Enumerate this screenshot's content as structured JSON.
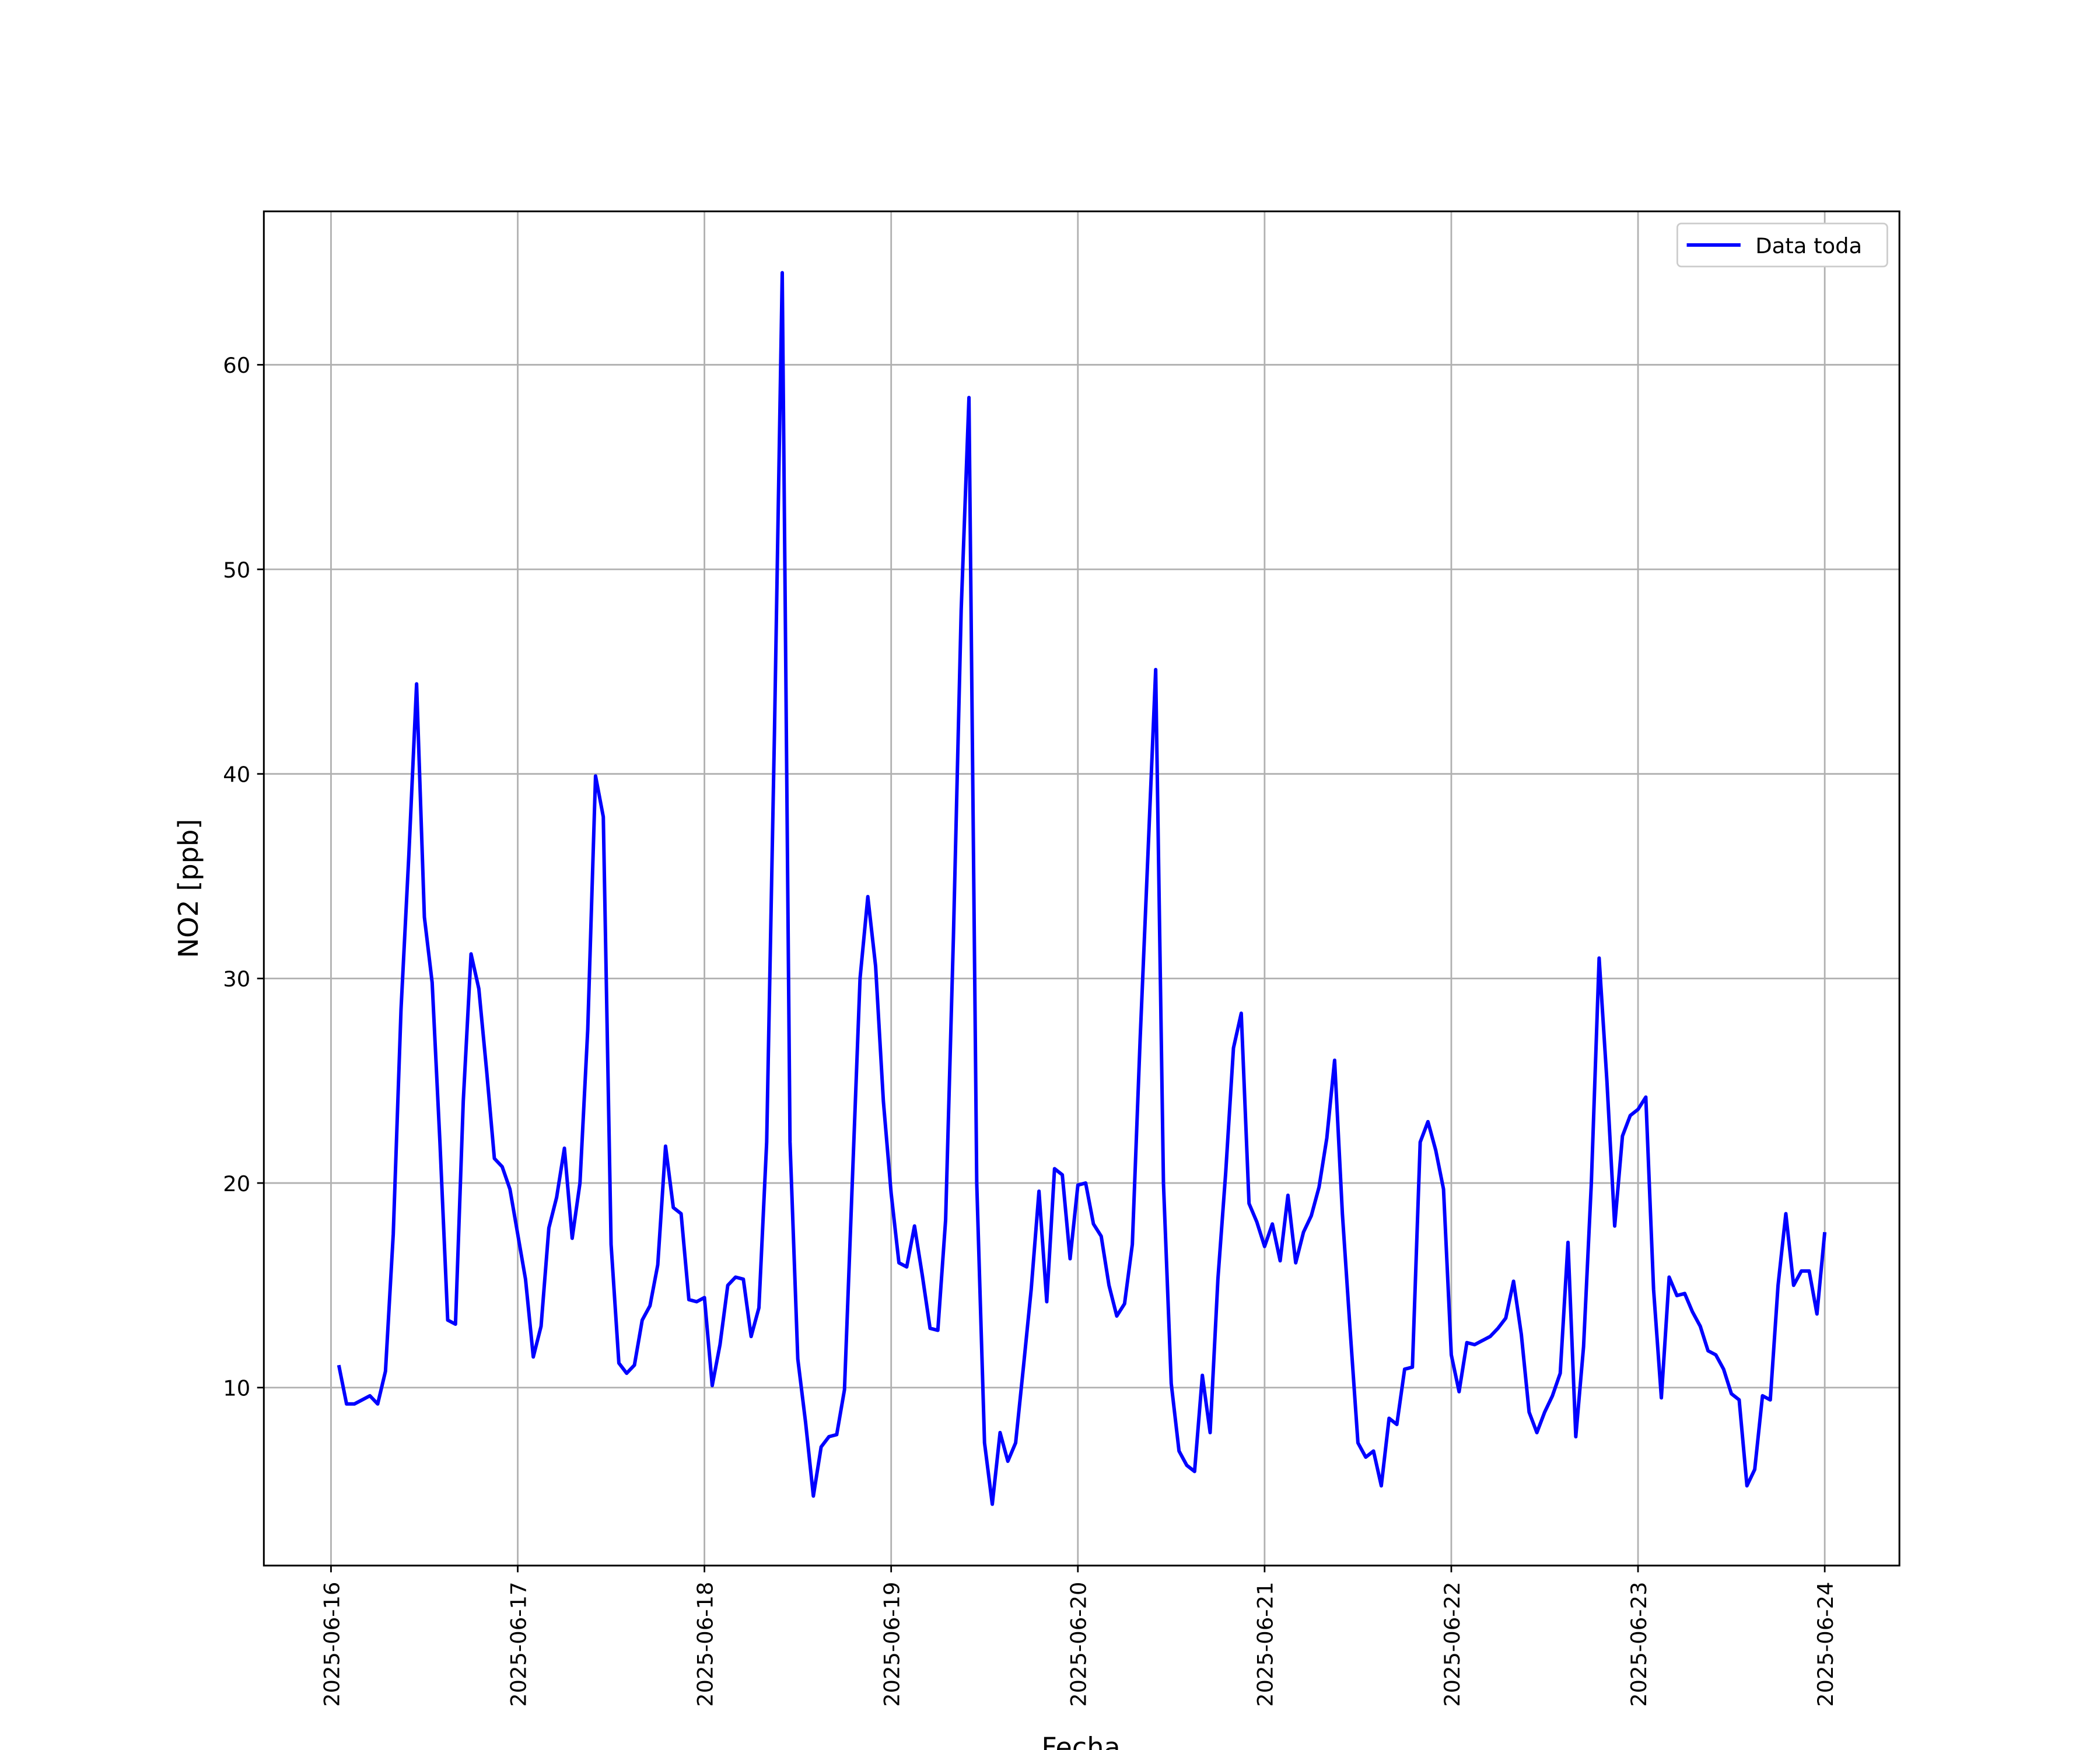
{
  "chart_data": {
    "type": "line",
    "xlabel": "Fecha",
    "ylabel": "NO2 [ppb]",
    "xlim": [
      "2025-06-15T15:22",
      "2025-06-24T09:36"
    ],
    "xticks": [
      "2025-06-16",
      "2025-06-17",
      "2025-06-18",
      "2025-06-19",
      "2025-06-20",
      "2025-06-21",
      "2025-06-22",
      "2025-06-23",
      "2025-06-24"
    ],
    "ylim": [
      1.3,
      67.5
    ],
    "yticks": [
      10,
      20,
      30,
      40,
      50,
      60
    ],
    "grid": true,
    "legend": "upper right",
    "x": [
      "2025-06-16T01:00",
      "2025-06-16T02:00",
      "2025-06-16T03:00",
      "2025-06-16T04:00",
      "2025-06-16T05:00",
      "2025-06-16T06:00",
      "2025-06-16T07:00",
      "2025-06-16T08:00",
      "2025-06-16T09:00",
      "2025-06-16T10:00",
      "2025-06-16T11:00",
      "2025-06-16T12:00",
      "2025-06-16T13:00",
      "2025-06-16T14:00",
      "2025-06-16T15:00",
      "2025-06-16T16:00",
      "2025-06-16T17:00",
      "2025-06-16T18:00",
      "2025-06-16T19:00",
      "2025-06-16T20:00",
      "2025-06-16T21:00",
      "2025-06-16T22:00",
      "2025-06-16T23:00",
      "2025-06-17T00:00",
      "2025-06-17T01:00",
      "2025-06-17T02:00",
      "2025-06-17T03:00",
      "2025-06-17T04:00",
      "2025-06-17T05:00",
      "2025-06-17T06:00",
      "2025-06-17T07:00",
      "2025-06-17T08:00",
      "2025-06-17T09:00",
      "2025-06-17T10:00",
      "2025-06-17T11:00",
      "2025-06-17T12:00",
      "2025-06-17T13:00",
      "2025-06-17T14:00",
      "2025-06-17T15:00",
      "2025-06-17T16:00",
      "2025-06-17T17:00",
      "2025-06-17T18:00",
      "2025-06-17T19:00",
      "2025-06-17T20:00",
      "2025-06-17T21:00",
      "2025-06-17T22:00",
      "2025-06-17T23:00",
      "2025-06-18T00:00",
      "2025-06-18T01:00",
      "2025-06-18T02:00",
      "2025-06-18T03:00",
      "2025-06-18T04:00",
      "2025-06-18T05:00",
      "2025-06-18T06:00",
      "2025-06-18T07:00",
      "2025-06-18T08:00",
      "2025-06-18T09:00",
      "2025-06-18T10:00",
      "2025-06-18T11:00",
      "2025-06-18T12:00",
      "2025-06-18T13:00",
      "2025-06-18T14:00",
      "2025-06-18T15:00",
      "2025-06-18T16:00",
      "2025-06-18T17:00",
      "2025-06-18T18:00",
      "2025-06-18T19:00",
      "2025-06-18T20:00",
      "2025-06-18T21:00",
      "2025-06-18T22:00",
      "2025-06-18T23:00",
      "2025-06-19T00:00",
      "2025-06-19T01:00",
      "2025-06-19T02:00",
      "2025-06-19T03:00",
      "2025-06-19T04:00",
      "2025-06-19T05:00",
      "2025-06-19T06:00",
      "2025-06-19T07:00",
      "2025-06-19T08:00",
      "2025-06-19T09:00",
      "2025-06-19T10:00",
      "2025-06-19T11:00",
      "2025-06-19T12:00",
      "2025-06-19T13:00",
      "2025-06-19T14:00",
      "2025-06-19T15:00",
      "2025-06-19T16:00",
      "2025-06-19T17:00",
      "2025-06-19T18:00",
      "2025-06-19T19:00",
      "2025-06-19T20:00",
      "2025-06-19T21:00",
      "2025-06-19T22:00",
      "2025-06-19T23:00",
      "2025-06-20T00:00",
      "2025-06-20T01:00",
      "2025-06-20T02:00",
      "2025-06-20T03:00",
      "2025-06-20T04:00",
      "2025-06-20T05:00",
      "2025-06-20T06:00",
      "2025-06-20T07:00",
      "2025-06-20T08:00",
      "2025-06-20T09:00",
      "2025-06-20T10:00",
      "2025-06-20T11:00",
      "2025-06-20T12:00",
      "2025-06-20T13:00",
      "2025-06-20T14:00",
      "2025-06-20T15:00",
      "2025-06-20T16:00",
      "2025-06-20T17:00",
      "2025-06-20T18:00",
      "2025-06-20T19:00",
      "2025-06-20T20:00",
      "2025-06-20T21:00",
      "2025-06-20T22:00",
      "2025-06-20T23:00",
      "2025-06-21T00:00",
      "2025-06-21T01:00",
      "2025-06-21T02:00",
      "2025-06-21T03:00",
      "2025-06-21T04:00",
      "2025-06-21T05:00",
      "2025-06-21T06:00",
      "2025-06-21T07:00",
      "2025-06-21T08:00",
      "2025-06-21T09:00",
      "2025-06-21T10:00",
      "2025-06-21T11:00",
      "2025-06-21T12:00",
      "2025-06-21T13:00",
      "2025-06-21T14:00",
      "2025-06-21T15:00",
      "2025-06-21T16:00",
      "2025-06-21T17:00",
      "2025-06-21T18:00",
      "2025-06-21T19:00",
      "2025-06-21T20:00",
      "2025-06-21T21:00",
      "2025-06-21T22:00",
      "2025-06-21T23:00",
      "2025-06-22T00:00",
      "2025-06-22T01:00",
      "2025-06-22T02:00",
      "2025-06-22T03:00",
      "2025-06-22T04:00",
      "2025-06-22T05:00",
      "2025-06-22T06:00",
      "2025-06-22T07:00",
      "2025-06-22T08:00",
      "2025-06-22T09:00",
      "2025-06-22T10:00",
      "2025-06-22T11:00",
      "2025-06-22T12:00",
      "2025-06-22T13:00",
      "2025-06-22T14:00",
      "2025-06-22T15:00",
      "2025-06-22T16:00",
      "2025-06-22T17:00",
      "2025-06-22T18:00",
      "2025-06-22T19:00",
      "2025-06-22T20:00",
      "2025-06-22T21:00",
      "2025-06-22T22:00",
      "2025-06-22T23:00",
      "2025-06-23T00:00",
      "2025-06-23T01:00",
      "2025-06-23T02:00",
      "2025-06-23T03:00",
      "2025-06-23T04:00",
      "2025-06-23T05:00",
      "2025-06-23T06:00",
      "2025-06-23T07:00",
      "2025-06-23T08:00",
      "2025-06-23T09:00",
      "2025-06-23T10:00",
      "2025-06-23T11:00",
      "2025-06-23T12:00",
      "2025-06-23T13:00",
      "2025-06-23T14:00",
      "2025-06-23T15:00",
      "2025-06-23T16:00",
      "2025-06-23T17:00",
      "2025-06-23T18:00",
      "2025-06-23T19:00",
      "2025-06-23T20:00",
      "2025-06-23T21:00",
      "2025-06-23T22:00",
      "2025-06-23T23:00",
      "2025-06-24T00:00"
    ],
    "series": [
      {
        "name": "Data toda",
        "color": "#0000ff",
        "values": [
          11.1,
          9.2,
          9.2,
          9.4,
          9.6,
          9.2,
          10.8,
          17.5,
          28.5,
          36,
          44.4,
          33,
          29.8,
          22,
          13.3,
          13.1,
          24,
          31.2,
          29.5,
          25.5,
          21.2,
          20.8,
          19.7,
          17.5,
          15.3,
          11.5,
          13,
          17.8,
          19.3,
          21.7,
          17.3,
          20,
          27.5,
          39.9,
          37.9,
          17,
          11.2,
          10.7,
          11.1,
          13.3,
          14,
          16,
          21.8,
          18.8,
          18.5,
          14.3,
          14.2,
          14.4,
          10.1,
          12.1,
          15,
          15.4,
          15.3,
          12.5,
          13.9,
          22,
          42,
          64.5,
          22,
          11.4,
          8.3,
          4.7,
          7.1,
          7.6,
          7.7,
          9.9,
          20,
          30,
          34,
          30.6,
          24,
          19.5,
          16.1,
          15.9,
          17.9,
          15.5,
          12.9,
          12.8,
          18.2,
          32,
          48,
          58.4,
          20,
          7.3,
          4.3,
          7.8,
          6.4,
          7.3,
          11,
          14.8,
          19.6,
          14.2,
          20.7,
          20.4,
          16.3,
          19.9,
          20,
          18,
          17.4,
          15,
          13.5,
          14.1,
          17,
          27,
          36,
          45.1,
          20,
          10.2,
          6.9,
          6.2,
          5.9,
          10.6,
          7.8,
          15.3,
          20.5,
          26.6,
          28.3,
          19,
          18.1,
          16.9,
          18,
          16.2,
          19.4,
          16.1,
          17.6,
          18.4,
          19.8,
          22.2,
          26,
          18.5,
          12.8,
          7.3,
          6.6,
          6.9,
          5.2,
          8.5,
          8.2,
          10.9,
          11,
          22,
          23,
          21.6,
          19.7,
          11.6,
          9.8,
          12.2,
          12.1,
          12.3,
          12.5,
          12.9,
          13.4,
          15.2,
          12.6,
          8.8,
          7.8,
          8.8,
          9.6,
          10.7,
          17.1,
          7.6,
          12,
          20,
          31,
          25,
          17.9,
          22.3,
          23.3,
          23.6,
          24.2,
          14.8,
          9.5,
          15.4,
          14.5,
          14.6,
          13.7,
          13,
          11.8,
          11.6,
          10.9,
          9.7,
          9.4,
          5.2,
          6,
          9.6,
          9.4,
          15,
          18.5,
          15,
          15.7,
          15.7,
          13.6,
          17.6
        ]
      }
    ]
  }
}
